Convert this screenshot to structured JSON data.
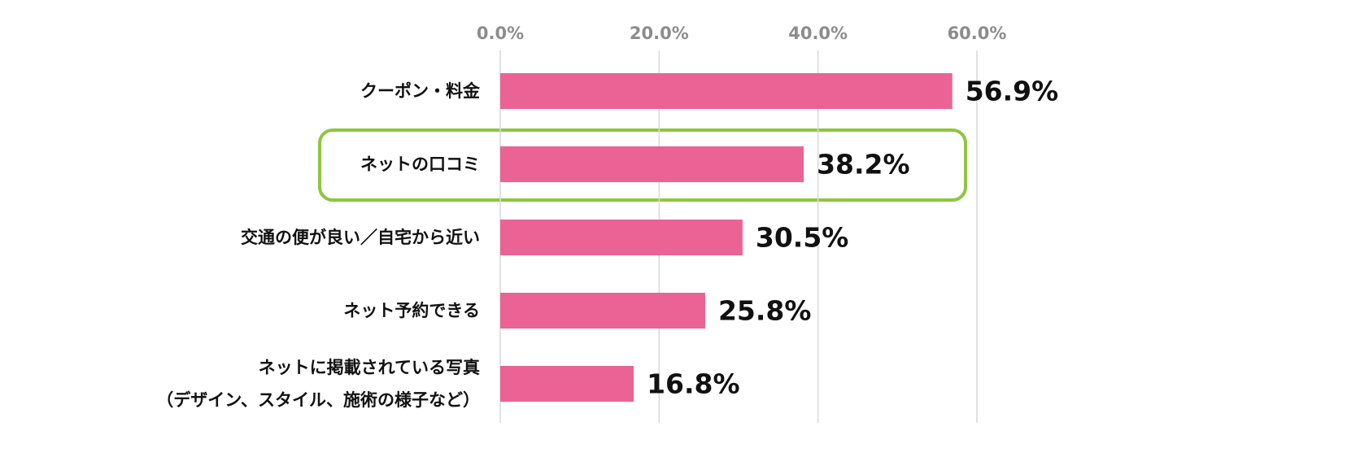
{
  "chart_data": {
    "type": "bar",
    "orientation": "horizontal",
    "categories": [
      "クーポン・料金",
      "ネットの口コミ",
      "交通の便が良い／自宅から近い",
      "ネット予約できる",
      "ネットに掲載されている写真\n（デザイン、スタイル、施術の様子など）"
    ],
    "values": [
      56.9,
      38.2,
      30.5,
      25.8,
      16.8
    ],
    "value_labels": [
      "56.9%",
      "38.2%",
      "30.5%",
      "25.8%",
      "16.8%"
    ],
    "color": "#ea6394",
    "xlim": [
      0,
      60
    ],
    "xticks": [
      {
        "value": 0,
        "label": "0.0%"
      },
      {
        "value": 20,
        "label": "20.0%"
      },
      {
        "value": 40,
        "label": "40.0%"
      },
      {
        "value": 60,
        "label": "60.0%"
      }
    ],
    "grid": true
  }
}
